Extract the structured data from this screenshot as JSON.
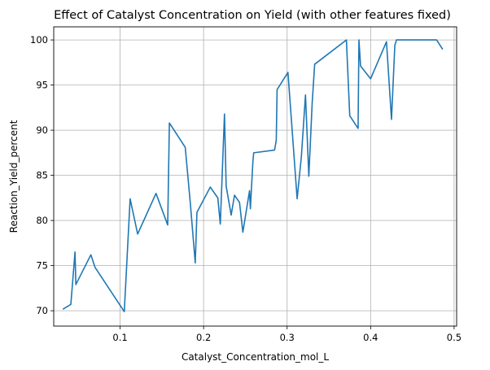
{
  "chart_data": {
    "type": "line",
    "title": "Effect of Catalyst Concentration on Yield (with other features fixed)",
    "xlabel": "Catalyst_Concentration_mol_L",
    "ylabel": "Reaction_Yield_percent",
    "xlim": [
      0.0205,
      0.503
    ],
    "ylim": [
      68.3,
      101.45
    ],
    "xticks": [
      0.1,
      0.2,
      0.3,
      0.4,
      0.5
    ],
    "xtick_labels": [
      "0.1",
      "0.2",
      "0.3",
      "0.4",
      "0.5"
    ],
    "yticks": [
      70,
      75,
      80,
      85,
      90,
      95,
      100
    ],
    "ytick_labels": [
      "70",
      "75",
      "80",
      "85",
      "90",
      "95",
      "100"
    ],
    "grid": true,
    "color": "#1f77b4",
    "series": [
      {
        "x": [
          0.032,
          0.041,
          0.046,
          0.047,
          0.065,
          0.07,
          0.105,
          0.112,
          0.121,
          0.143,
          0.157,
          0.159,
          0.178,
          0.184,
          0.19,
          0.192,
          0.208,
          0.217,
          0.22,
          0.225,
          0.227,
          0.233,
          0.237,
          0.243,
          0.247,
          0.255,
          0.256,
          0.259,
          0.26,
          0.285,
          0.287,
          0.288,
          0.301,
          0.312,
          0.317,
          0.322,
          0.326,
          0.33,
          0.333,
          0.371,
          0.375,
          0.385,
          0.386,
          0.388,
          0.4,
          0.419,
          0.425,
          0.429,
          0.431,
          0.479,
          0.486
        ],
        "y": [
          70.2,
          70.7,
          76.5,
          72.9,
          76.2,
          74.8,
          69.9,
          82.4,
          78.5,
          83.0,
          79.5,
          90.8,
          88.1,
          82.0,
          75.3,
          80.9,
          83.7,
          82.5,
          79.6,
          91.8,
          83.8,
          80.6,
          82.8,
          82.0,
          78.7,
          83.3,
          81.3,
          86.5,
          87.5,
          87.8,
          88.9,
          94.5,
          96.4,
          82.4,
          87.0,
          93.9,
          84.9,
          93.0,
          97.3,
          100.0,
          91.6,
          90.2,
          100.0,
          97.1,
          95.7,
          99.8,
          91.2,
          99.4,
          100.0,
          100.0,
          99.0
        ]
      }
    ]
  }
}
